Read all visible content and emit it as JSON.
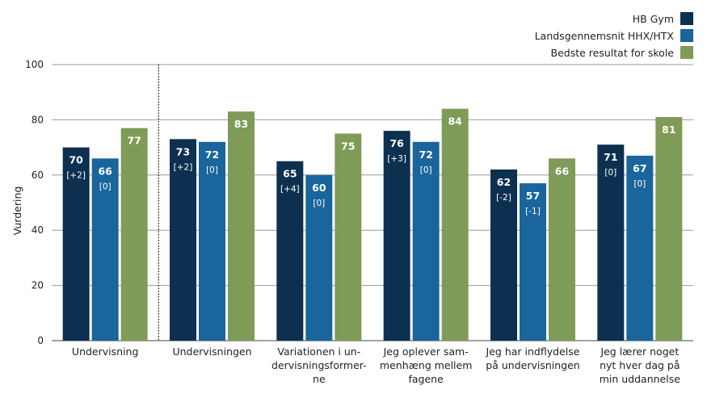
{
  "chart_data": {
    "type": "bar",
    "ylabel": "Vurdering",
    "xlabel": "",
    "ylim": [
      0,
      100
    ],
    "yticks": [
      0,
      20,
      40,
      60,
      80,
      100
    ],
    "grid": true,
    "legend_position": "top-right",
    "categories": [
      [
        "Undervisning"
      ],
      [
        "Undervisningen"
      ],
      [
        "Variationen i un-",
        "dervisningsformer-",
        "ne"
      ],
      [
        "Jeg oplever sam-",
        "menhæng mellem",
        "fagene"
      ],
      [
        "Jeg har indflydelse",
        "på undervisningen"
      ],
      [
        "Jeg lærer noget",
        "nyt hver dag på",
        "min uddannelse"
      ]
    ],
    "series": [
      {
        "name": "HB Gym",
        "color": "#0d3050",
        "values": [
          70,
          73,
          65,
          76,
          62,
          71
        ],
        "deltas": [
          "[+2]",
          "[+2]",
          "[+4]",
          "[+3]",
          "[-2]",
          "[0]"
        ]
      },
      {
        "name": "Landsgennemsnit HHX/HTX",
        "color": "#1a659b",
        "values": [
          66,
          72,
          60,
          72,
          57,
          67
        ],
        "deltas": [
          "[0]",
          "[0]",
          "[0]",
          "[0]",
          "[-1]",
          "[0]"
        ]
      },
      {
        "name": "Bedste resultat for skole",
        "color": "#7e9b58",
        "values": [
          77,
          83,
          75,
          84,
          66,
          81
        ],
        "deltas": []
      }
    ],
    "separator_after_category": 0
  }
}
